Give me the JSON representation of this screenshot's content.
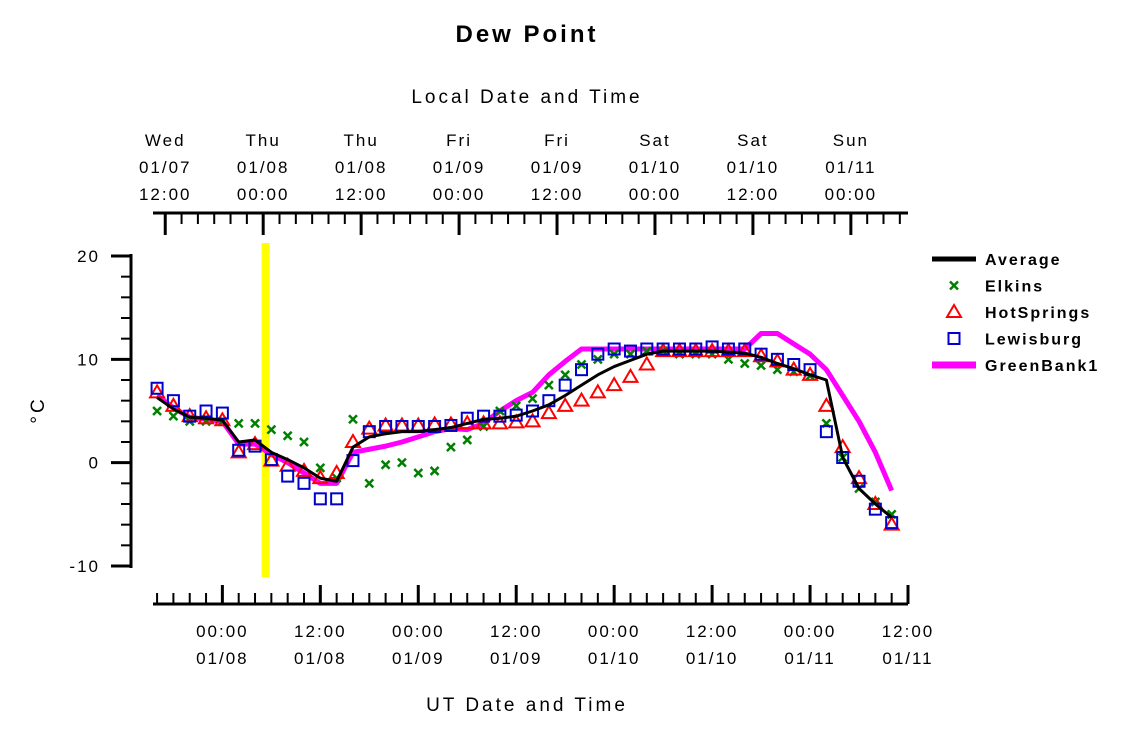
{
  "chart_data": {
    "type": "line",
    "title": "Dew Point",
    "x2label": "Local Date and Time",
    "xlabel": "UT Date and Time",
    "ylabel": "°C",
    "xlim": [
      15.5,
      108
    ],
    "xticks": [
      {
        "value": 24,
        "label": "00:00\n01/08"
      },
      {
        "value": 36,
        "label": "12:00\n01/08"
      },
      {
        "value": 48,
        "label": "00:00\n01/09"
      },
      {
        "value": 60,
        "label": "12:00\n01/09"
      },
      {
        "value": 72,
        "label": "00:00\n01/10"
      },
      {
        "value": 84,
        "label": "12:00\n01/10"
      },
      {
        "value": 96,
        "label": "00:00\n01/11"
      },
      {
        "value": 108,
        "label": "12:00\n01/11"
      }
    ],
    "x2ticks": [
      {
        "value": 17,
        "label": "Wed\n01/07\n12:00"
      },
      {
        "value": 29,
        "label": "Thu\n01/08\n00:00"
      },
      {
        "value": 41,
        "label": "Thu\n01/08\n12:00"
      },
      {
        "value": 53,
        "label": "Fri\n01/09\n00:00"
      },
      {
        "value": 65,
        "label": "Fri\n01/09\n12:00"
      },
      {
        "value": 77,
        "label": "Sat\n01/10\n00:00"
      },
      {
        "value": 89,
        "label": "Sat\n01/10\n12:00"
      },
      {
        "value": 101,
        "label": "Sun\n01/11\n00:00"
      }
    ],
    "ylim": [
      -10,
      20
    ],
    "yticks": [
      -10,
      0,
      10,
      20
    ],
    "vline": {
      "x": 29.3,
      "color": "#ffff00"
    },
    "x": [
      16,
      18,
      20,
      22,
      24,
      26,
      28,
      30,
      32,
      34,
      36,
      38,
      40,
      42,
      44,
      46,
      48,
      50,
      52,
      54,
      56,
      58,
      60,
      62,
      64,
      66,
      68,
      70,
      72,
      74,
      76,
      78,
      80,
      82,
      84,
      86,
      88,
      90,
      92,
      94,
      96,
      98,
      100,
      102,
      104,
      106
    ],
    "series": [
      {
        "name": "Average",
        "color": "#000000",
        "marker": "line",
        "values": [
          6.3,
          5.2,
          4.4,
          4.3,
          4.1,
          2.0,
          2.2,
          1.0,
          0.3,
          -0.5,
          -1.5,
          -1.8,
          1.5,
          2.5,
          2.8,
          3.0,
          3.0,
          3.2,
          3.4,
          3.8,
          4.2,
          4.3,
          4.5,
          5.0,
          5.6,
          6.5,
          7.5,
          8.5,
          9.3,
          9.9,
          10.5,
          10.8,
          10.8,
          10.8,
          10.8,
          10.7,
          10.6,
          10.2,
          9.6,
          9.1,
          8.5,
          8.0,
          0.5,
          -2.5,
          -4.0,
          -5.3
        ]
      },
      {
        "name": "Elkins",
        "color": "#008000",
        "marker": "x",
        "values": [
          5,
          4.5,
          4.0,
          4.0,
          4.0,
          3.8,
          3.8,
          3.2,
          2.6,
          2.0,
          -0.5,
          -1.5,
          4.2,
          -2.0,
          -0.2,
          0,
          -1.0,
          -0.8,
          1.5,
          2.2,
          3.5,
          5.0,
          5.5,
          6.2,
          7.5,
          8.5,
          9.5,
          10.0,
          10.5,
          10.5,
          10.8,
          10.8,
          10.5,
          10.5,
          10.5,
          10.0,
          9.6,
          9.4,
          9.0,
          8.8,
          8.4,
          3.8,
          0.5,
          -2.5,
          -3.8,
          -5.0
        ]
      },
      {
        "name": "HotSprings",
        "color": "#ff0000",
        "marker": "triangle",
        "values": [
          6.8,
          5.5,
          4.5,
          4.3,
          4.1,
          1.0,
          1.8,
          0.2,
          -0.3,
          -0.8,
          -1.5,
          -1.0,
          2.0,
          3.3,
          3.6,
          3.6,
          3.6,
          3.7,
          3.7,
          3.8,
          3.8,
          3.8,
          3.9,
          4.0,
          4.8,
          5.5,
          6.0,
          6.8,
          7.5,
          8.3,
          9.5,
          10.8,
          10.8,
          10.8,
          10.8,
          10.8,
          10.8,
          10.3,
          9.8,
          9.0,
          8.5,
          5.5,
          1.5,
          -1.5,
          -4.0,
          -6.0
        ]
      },
      {
        "name": "Lewisburg",
        "color": "#0000cc",
        "marker": "square",
        "values": [
          7.2,
          6,
          4.5,
          5.0,
          4.8,
          1.2,
          1.6,
          0.3,
          -1.3,
          -2.0,
          -3.5,
          -3.5,
          0.2,
          3.0,
          3.5,
          3.5,
          3.5,
          3.5,
          3.6,
          4.3,
          4.5,
          4.5,
          4.6,
          5.0,
          6.0,
          7.5,
          9.0,
          10.5,
          11,
          10.8,
          11,
          11,
          11,
          11,
          11.2,
          11,
          11,
          10.5,
          10,
          9.5,
          9,
          3,
          0.5,
          -1.8,
          -4.5,
          -5.8
        ]
      },
      {
        "name": "GreenBank1",
        "color": "#ff00ff",
        "marker": "line",
        "values": [
          6.5,
          5.3,
          4.4,
          4.2,
          4.0,
          1.8,
          1.8,
          0.8,
          0.0,
          -1.0,
          -2.0,
          -2.0,
          1.0,
          1.3,
          1.6,
          2.0,
          2.5,
          3.0,
          3.3,
          3.2,
          3.8,
          5.0,
          6.0,
          6.8,
          8.5,
          9.8,
          11,
          11,
          11,
          11,
          11,
          11,
          11,
          11,
          11,
          11,
          11,
          12.5,
          12.5,
          11.5,
          10.5,
          9,
          6.5,
          4,
          1,
          -2.7
        ]
      }
    ]
  }
}
